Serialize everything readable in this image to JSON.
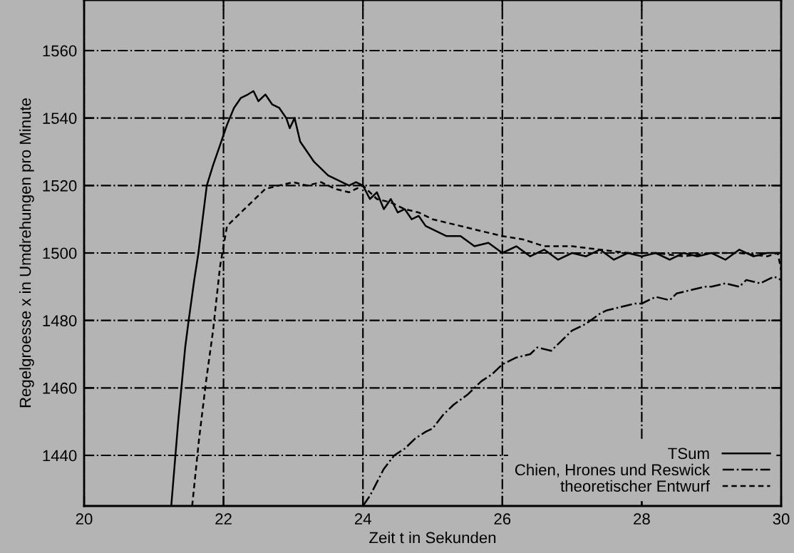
{
  "chart_data": {
    "type": "line",
    "xlabel": "Zeit t in Sekunden",
    "ylabel": "Regelgroesse x in Umdrehungen pro Minute",
    "xlim": [
      20,
      30
    ],
    "ylim": [
      1425,
      1575
    ],
    "xticks": [
      20,
      22,
      24,
      26,
      28,
      30
    ],
    "yticks": [
      1440,
      1460,
      1480,
      1500,
      1520,
      1540,
      1560
    ],
    "grid": true,
    "legend": "bottom right",
    "marker": "none",
    "series": [
      {
        "name": "TSum",
        "color": "#000000",
        "line_style": "solid",
        "x": [
          21.25,
          21.35,
          21.45,
          21.5,
          21.58,
          21.64,
          21.7,
          21.76,
          21.85,
          21.95,
          22.05,
          22.15,
          22.25,
          22.35,
          22.43,
          22.5,
          22.6,
          22.7,
          22.8,
          22.9,
          22.95,
          23.02,
          23.1,
          23.2,
          23.3,
          23.4,
          23.5,
          23.6,
          23.7,
          23.8,
          23.9,
          24.0,
          24.1,
          24.2,
          24.3,
          24.4,
          24.5,
          24.6,
          24.7,
          24.8,
          24.9,
          25.0,
          25.2,
          25.4,
          25.6,
          25.8,
          26.0,
          26.2,
          26.4,
          26.6,
          26.8,
          27.0,
          27.2,
          27.4,
          27.6,
          27.8,
          28.0,
          28.2,
          28.4,
          28.6,
          28.8,
          29.0,
          29.2,
          29.4,
          29.6,
          29.8,
          30.0
        ],
        "values": [
          1425,
          1450,
          1472,
          1480,
          1492,
          1500,
          1510,
          1520,
          1526,
          1532,
          1538,
          1543,
          1546,
          1547,
          1548,
          1545,
          1547,
          1544,
          1543,
          1540,
          1537,
          1540,
          1533,
          1530,
          1527,
          1525,
          1523,
          1522,
          1521,
          1520,
          1521,
          1520,
          1516,
          1518,
          1513,
          1516,
          1512,
          1513,
          1510,
          1511,
          1508,
          1507,
          1505,
          1505,
          1502,
          1503,
          1500,
          1502,
          1499,
          1501,
          1498,
          1500,
          1499,
          1501,
          1498,
          1500,
          1499,
          1500,
          1498,
          1500,
          1499,
          1500,
          1498,
          1501,
          1499,
          1500,
          1500
        ]
      },
      {
        "name": "Chien, Hrones und Reswick",
        "color": "#000000",
        "line_style": "dashdot",
        "x": [
          24.0,
          24.1,
          24.2,
          24.3,
          24.45,
          24.6,
          24.75,
          24.9,
          25.0,
          25.15,
          25.3,
          25.5,
          25.7,
          25.85,
          26.0,
          26.2,
          26.4,
          26.5,
          26.7,
          26.9,
          27.0,
          27.2,
          27.4,
          27.5,
          27.7,
          27.9,
          28.0,
          28.2,
          28.4,
          28.5,
          28.7,
          28.9,
          29.0,
          29.2,
          29.4,
          29.5,
          29.7,
          29.9,
          30.0
        ],
        "values": [
          1425,
          1428,
          1432,
          1436,
          1440,
          1442,
          1445,
          1447,
          1448,
          1452,
          1455,
          1458,
          1462,
          1464,
          1467,
          1469,
          1470,
          1472,
          1471,
          1475,
          1477,
          1479,
          1482,
          1483,
          1484,
          1485,
          1485,
          1487,
          1486,
          1488,
          1489,
          1490,
          1490,
          1491,
          1490,
          1492,
          1491,
          1493,
          1492
        ]
      },
      {
        "name": "theoretischer Entwurf",
        "color": "#000000",
        "line_style": "dashed",
        "x": [
          21.55,
          21.65,
          21.75,
          21.85,
          21.95,
          22.05,
          22.15,
          22.3,
          22.45,
          22.6,
          22.8,
          23.0,
          23.2,
          23.4,
          23.6,
          23.8,
          24.0,
          24.2,
          24.4,
          24.6,
          24.8,
          25.0,
          25.2,
          25.4,
          25.6,
          25.8,
          26.0,
          26.3,
          26.6,
          27.0,
          27.4,
          27.8,
          28.2,
          28.6,
          29.0,
          29.4,
          29.8,
          29.95,
          30.0
        ],
        "values": [
          1425,
          1445,
          1462,
          1477,
          1496,
          1508,
          1510,
          1513,
          1516,
          1519,
          1520,
          1521,
          1520,
          1521,
          1519,
          1518,
          1520,
          1516,
          1515,
          1513,
          1512,
          1510,
          1509,
          1508,
          1507,
          1506,
          1505,
          1504,
          1502,
          1502,
          1501,
          1500,
          1500,
          1499,
          1500,
          1500,
          1499,
          1500,
          1495
        ]
      }
    ]
  }
}
